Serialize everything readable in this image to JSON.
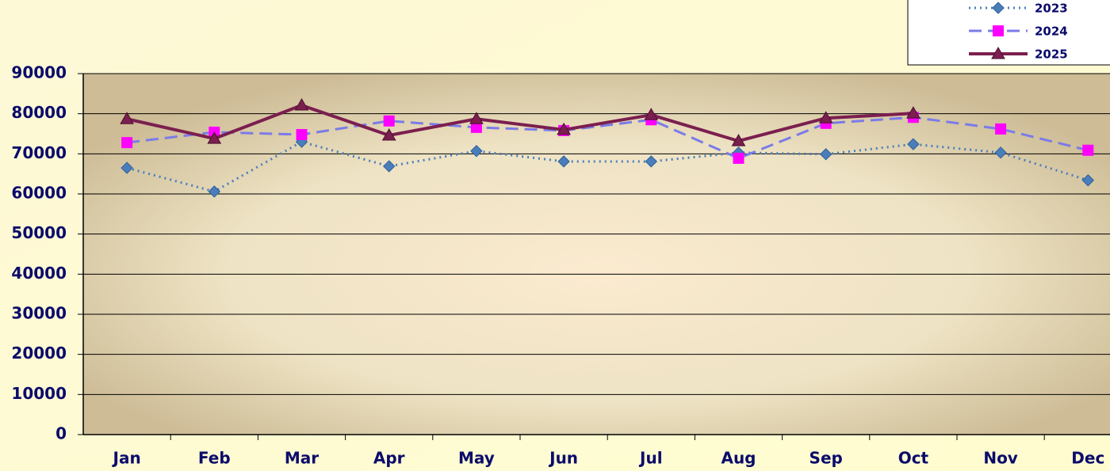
{
  "chart_data": {
    "type": "line",
    "categories": [
      "Jan",
      "Feb",
      "Mar",
      "Apr",
      "May",
      "Jun",
      "Jul",
      "Aug",
      "Sep",
      "Oct",
      "Nov",
      "Dec"
    ],
    "series": [
      {
        "name": "2023",
        "color": "#4a7ebb",
        "marker_color": "#4a7ebb",
        "marker": "diamond",
        "line_style": "dotted",
        "values": [
          66500,
          60600,
          73000,
          66900,
          70700,
          68100,
          68100,
          70300,
          69900,
          72400,
          70300,
          63400
        ]
      },
      {
        "name": "2024",
        "color": "#7b7be8",
        "marker_color": "#ff00ff",
        "marker": "square",
        "line_style": "dashed",
        "values": [
          72800,
          75400,
          74800,
          78200,
          76600,
          75800,
          78500,
          68900,
          77600,
          79100,
          76200,
          70900
        ]
      },
      {
        "name": "2025",
        "color": "#7b1f4f",
        "marker_color": "#7b1f4f",
        "marker": "triangle",
        "line_style": "solid",
        "values": [
          78700,
          73800,
          82100,
          74600,
          78700,
          76000,
          79700,
          73200,
          78900,
          80100,
          null,
          null
        ]
      }
    ],
    "ylim": [
      0,
      90000
    ],
    "yticks": [
      0,
      10000,
      20000,
      30000,
      40000,
      50000,
      60000,
      70000,
      80000,
      90000
    ],
    "grid": true,
    "legend": "top-right"
  }
}
